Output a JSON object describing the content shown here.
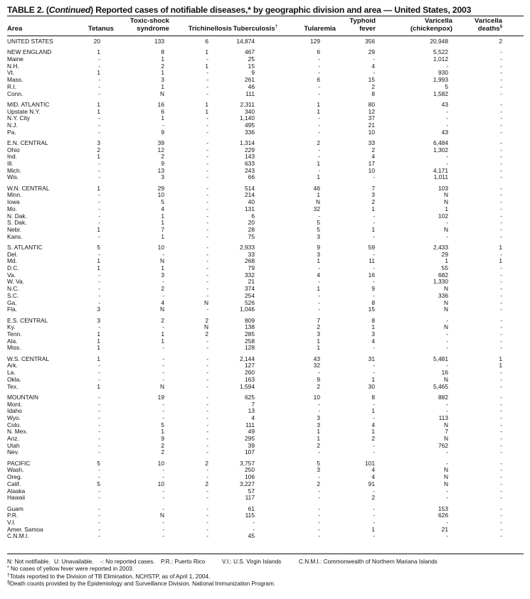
{
  "title": {
    "prefix": "TABLE 2. (",
    "continued": "Continued",
    "rest": ") Reported cases of notifiable diseases,* by geographic division and area — United States, 2003"
  },
  "columns": [
    {
      "l1": "",
      "l2": "Area",
      "sup": ""
    },
    {
      "l1": "",
      "l2": "Tetanus",
      "sup": ""
    },
    {
      "l1": "Toxic-shock",
      "l2": "syndrome",
      "sup": ""
    },
    {
      "l1": "",
      "l2": "Trichinellosis",
      "sup": ""
    },
    {
      "l1": "",
      "l2": "Tuberculosis",
      "sup": "†"
    },
    {
      "l1": "",
      "l2": "Tularemia",
      "sup": ""
    },
    {
      "l1": "Typhoid",
      "l2": "fever",
      "sup": ""
    },
    {
      "l1": "Varicella",
      "l2": "(chickenpox)",
      "sup": ""
    },
    {
      "l1": "Varicella",
      "l2": "deaths",
      "sup": "§"
    }
  ],
  "groups": [
    {
      "rows": [
        [
          "UNITED STATES",
          "20",
          "133",
          "6",
          "14,874",
          "129",
          "356",
          "20,948",
          "2"
        ]
      ]
    },
    {
      "rows": [
        [
          "NEW ENGLAND",
          "1",
          "8",
          "1",
          "467",
          "6",
          "29",
          "5,522",
          "-"
        ],
        [
          "Maine",
          "-",
          "1",
          "-",
          "25",
          "-",
          "-",
          "1,012",
          "-"
        ],
        [
          "N.H.",
          "-",
          "2",
          "1",
          "15",
          "-",
          "4",
          "-",
          "-"
        ],
        [
          "Vt.",
          "1",
          "1",
          "-",
          "9",
          "-",
          "-",
          "930",
          "-"
        ],
        [
          "Mass.",
          "-",
          "3",
          "-",
          "261",
          "6",
          "15",
          "1,993",
          "-"
        ],
        [
          "R.I.",
          "-",
          "1",
          "-",
          "46",
          "-",
          "2",
          "5",
          "-"
        ],
        [
          "Conn.",
          "-",
          "N",
          "-",
          "111",
          "-",
          "8",
          "1,582",
          "-"
        ]
      ]
    },
    {
      "rows": [
        [
          "MID. ATLANTIC",
          "1",
          "16",
          "1",
          "2,311",
          "1",
          "80",
          "43",
          "-"
        ],
        [
          "Upstate N.Y.",
          "1",
          "6",
          "1",
          "340",
          "1",
          "12",
          "-",
          "-"
        ],
        [
          "N.Y. City",
          "-",
          "1",
          "-",
          "1,140",
          "-",
          "37",
          "-",
          "-"
        ],
        [
          "N.J.",
          "-",
          "-",
          "-",
          "495",
          "-",
          "21",
          "-",
          "-"
        ],
        [
          "Pa.",
          "-",
          "9",
          "-",
          "336",
          "-",
          "10",
          "43",
          "-"
        ]
      ]
    },
    {
      "rows": [
        [
          "E.N. CENTRAL",
          "3",
          "39",
          "-",
          "1,314",
          "2",
          "33",
          "6,484",
          "-"
        ],
        [
          "Ohio",
          "2",
          "12",
          "-",
          "229",
          "-",
          "2",
          "1,302",
          "-"
        ],
        [
          "Ind.",
          "1",
          "2",
          "-",
          "143",
          "-",
          "4",
          "-",
          "-"
        ],
        [
          "Ill.",
          "-",
          "9",
          "-",
          "633",
          "1",
          "17",
          "-",
          "-"
        ],
        [
          "Mich.",
          "-",
          "13",
          "-",
          "243",
          "-",
          "10",
          "4,171",
          "-"
        ],
        [
          "Wis.",
          "-",
          "3",
          "-",
          "66",
          "1",
          "-",
          "1,011",
          "-"
        ]
      ]
    },
    {
      "rows": [
        [
          "W.N. CENTRAL",
          "1",
          "29",
          "-",
          "514",
          "46",
          "7",
          "103",
          "-"
        ],
        [
          "Minn.",
          "-",
          "10",
          "-",
          "214",
          "1",
          "3",
          "N",
          "-"
        ],
        [
          "Iowa",
          "-",
          "5",
          "-",
          "40",
          "N",
          "2",
          "N",
          "-"
        ],
        [
          "Mo.",
          "-",
          "4",
          "-",
          "131",
          "32",
          "1",
          "1",
          "-"
        ],
        [
          "N. Dak.",
          "-",
          "1",
          "-",
          "6",
          "-",
          "-",
          "102",
          "-"
        ],
        [
          "S. Dak.",
          "-",
          "1",
          "-",
          "20",
          "5",
          "-",
          "-",
          "-"
        ],
        [
          "Nebr.",
          "1",
          "7",
          "-",
          "28",
          "5",
          "1",
          "N",
          "-"
        ],
        [
          "Kans.",
          "-",
          "1",
          "-",
          "75",
          "3",
          "-",
          "-",
          "-"
        ]
      ]
    },
    {
      "rows": [
        [
          "S. ATLANTIC",
          "5",
          "10",
          "-",
          "2,933",
          "9",
          "59",
          "2,433",
          "1"
        ],
        [
          "Del.",
          "-",
          "-",
          "-",
          "33",
          "3",
          "-",
          "29",
          "-"
        ],
        [
          "Md.",
          "1",
          "N",
          "-",
          "268",
          "1",
          "11",
          "1",
          "1"
        ],
        [
          "D.C.",
          "1",
          "1",
          "-",
          "79",
          "-",
          "-",
          "55",
          "-"
        ],
        [
          "Va.",
          "-",
          "3",
          "-",
          "332",
          "4",
          "16",
          "682",
          "-"
        ],
        [
          "W. Va.",
          "-",
          "-",
          "-",
          "21",
          "-",
          "-",
          "1,330",
          "-"
        ],
        [
          "N.C.",
          "-",
          "2",
          "-",
          "374",
          "1",
          "9",
          "N",
          "-"
        ],
        [
          "S.C.",
          "-",
          "-",
          "-",
          "254",
          "-",
          "-",
          "336",
          "-"
        ],
        [
          "Ga.",
          "-",
          "4",
          "N",
          "526",
          "-",
          "8",
          "N",
          "-"
        ],
        [
          "Fla.",
          "3",
          "N",
          "-",
          "1,046",
          "-",
          "15",
          "N",
          "-"
        ]
      ]
    },
    {
      "rows": [
        [
          "E.S. CENTRAL",
          "3",
          "2",
          "2",
          "809",
          "7",
          "8",
          "-",
          "-"
        ],
        [
          "Ky.",
          "-",
          "-",
          "N",
          "138",
          "2",
          "1",
          "N",
          "-"
        ],
        [
          "Tenn.",
          "1",
          "1",
          "2",
          "285",
          "3",
          "3",
          "-",
          "-"
        ],
        [
          "Ala.",
          "1",
          "1",
          "-",
          "258",
          "1",
          "4",
          "-",
          "-"
        ],
        [
          "Miss.",
          "1",
          "-",
          "-",
          "128",
          "1",
          "-",
          "-",
          "-"
        ]
      ]
    },
    {
      "rows": [
        [
          "W.S. CENTRAL",
          "1",
          "-",
          "-",
          "2,144",
          "43",
          "31",
          "5,481",
          "1"
        ],
        [
          "Ark.",
          "-",
          "-",
          "-",
          "127",
          "32",
          "-",
          "-",
          "1"
        ],
        [
          "La.",
          "-",
          "-",
          "-",
          "260",
          "-",
          "-",
          "16",
          "-"
        ],
        [
          "Okla.",
          "-",
          "-",
          "-",
          "163",
          "9",
          "1",
          "N",
          "-"
        ],
        [
          "Tex.",
          "1",
          "N",
          "-",
          "1,594",
          "2",
          "30",
          "5,465",
          "-"
        ]
      ]
    },
    {
      "rows": [
        [
          "MOUNTAIN",
          "-",
          "19",
          "-",
          "625",
          "10",
          "8",
          "882",
          "-"
        ],
        [
          "Mont.",
          "-",
          "-",
          "-",
          "7",
          "-",
          "-",
          "-",
          "-"
        ],
        [
          "Idaho",
          "-",
          "-",
          "-",
          "13",
          "-",
          "1",
          "-",
          "-"
        ],
        [
          "Wyo.",
          "-",
          "-",
          "-",
          "4",
          "3",
          "-",
          "113",
          "-"
        ],
        [
          "Colo.",
          "-",
          "5",
          "-",
          "111",
          "3",
          "4",
          "N",
          "-"
        ],
        [
          "N. Mex.",
          "-",
          "1",
          "-",
          "49",
          "1",
          "1",
          "7",
          "-"
        ],
        [
          "Ariz.",
          "-",
          "9",
          "-",
          "295",
          "1",
          "2",
          "N",
          "-"
        ],
        [
          "Utah",
          "-",
          "2",
          "-",
          "39",
          "2",
          "-",
          "762",
          "-"
        ],
        [
          "Nev.",
          "-",
          "2",
          "-",
          "107",
          "-",
          "-",
          "-",
          "-"
        ]
      ]
    },
    {
      "rows": [
        [
          "PACIFIC",
          "5",
          "10",
          "2",
          "3,757",
          "5",
          "101",
          "-",
          "-"
        ],
        [
          "Wash.",
          "-",
          "-",
          "-",
          "250",
          "3",
          "4",
          "N",
          "-"
        ],
        [
          "Oreg.",
          "-",
          "-",
          "-",
          "106",
          "-",
          "4",
          "N",
          "-"
        ],
        [
          "Calif.",
          "5",
          "10",
          "2",
          "3,227",
          "2",
          "91",
          "N",
          "-"
        ],
        [
          "Alaska",
          "-",
          "-",
          "-",
          "57",
          "-",
          "-",
          "-",
          "-"
        ],
        [
          "Hawaii",
          "-",
          "-",
          "-",
          "117",
          "-",
          "2",
          "-",
          "-"
        ]
      ]
    },
    {
      "rows": [
        [
          "Guam",
          "-",
          "-",
          "-",
          "61",
          "-",
          "-",
          "153",
          "-"
        ],
        [
          "P.R.",
          "-",
          "N",
          "-",
          "115",
          "-",
          "-",
          "626",
          "-"
        ],
        [
          "V.I.",
          "-",
          "-",
          "-",
          "-",
          "-",
          "-",
          "-",
          "-"
        ],
        [
          "Amer. Samoa",
          "-",
          "-",
          "-",
          "-",
          "-",
          "1",
          "21",
          "-"
        ],
        [
          "C.N.M.I.",
          "-",
          "-",
          "-",
          "45",
          "-",
          "-",
          "-",
          "-"
        ]
      ]
    }
  ],
  "legend": [
    "N: Not notifiable.",
    "U: Unavailable.",
    "-: No reported cases.",
    "P.R.: Puerto Rico",
    "V.I.: U.S. Virgin Islands",
    "C.N.M.I.: Commonwealth of Northern Mariana Islands"
  ],
  "footnotes": [
    {
      "mark": "*",
      "text": "No cases of yellow fever were reported in 2003."
    },
    {
      "mark": "†",
      "text": "Totals reported to the Division of TB Elimination, NCHSTP, as of April 1, 2004."
    },
    {
      "mark": "§",
      "text": "Death counts provided by the Epidemiology and Surveillance Division, National Immunization Program."
    }
  ]
}
